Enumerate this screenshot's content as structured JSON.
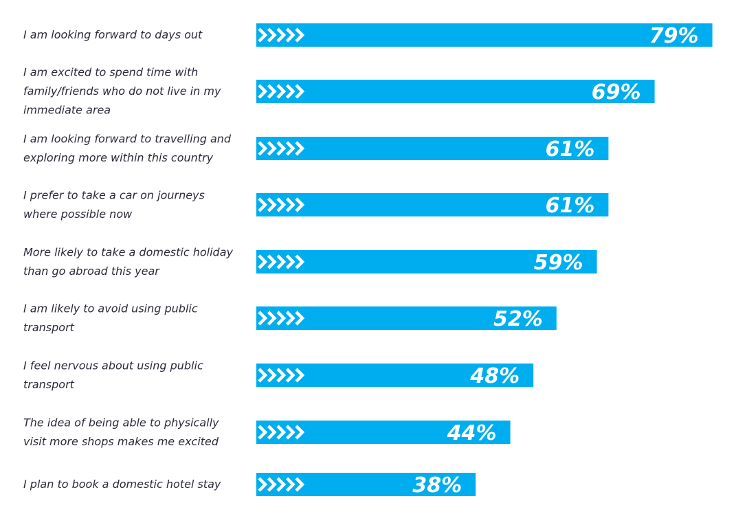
{
  "colors": {
    "bar": "#00AEEF",
    "chevron": "#ffffff",
    "label_text": "#2B2B3A",
    "value_inside": "#ffffff",
    "value_outside": "#00AEEF"
  },
  "chart_data": {
    "type": "bar",
    "orientation": "horizontal",
    "unit": "%",
    "grid": false,
    "xlim": [
      0,
      100
    ],
    "categories": [
      "I am looking forward to days out",
      "I am excited to spend time with family/friends who do not live in my immediate area",
      "I am looking forward to travelling and exploring more within this country",
      "I prefer to take a car on journeys where possible now",
      "More likely to take a domestic holiday than go abroad this year",
      "I am likely to avoid using public transport",
      "I feel nervous about using public transport",
      "The idea of being able to physically visit more shops makes me excited",
      "I plan to book a domestic hotel stay"
    ],
    "category_lines": [
      [
        "I am looking forward to days out"
      ],
      [
        "I am excited to spend time with",
        "family/friends who do not live in my",
        "immediate area"
      ],
      [
        "I am looking forward to travelling and",
        "exploring more within this country"
      ],
      [
        "I prefer to take a car on journeys",
        "where possible now"
      ],
      [
        "More likely to take a domestic holiday",
        "than go abroad this year"
      ],
      [
        "I am likely to avoid using public",
        "transport"
      ],
      [
        "I feel nervous about using public",
        "transport"
      ],
      [
        "The idea of being able to physically",
        "visit more shops makes me excited"
      ],
      [
        "I plan to book a domestic hotel stay"
      ]
    ],
    "values": [
      79,
      69,
      61,
      61,
      59,
      52,
      48,
      44,
      38
    ],
    "value_labels": [
      "79%",
      "69%",
      "61%",
      "61%",
      "59%",
      "52%",
      "48%",
      "44%",
      "38%"
    ]
  }
}
